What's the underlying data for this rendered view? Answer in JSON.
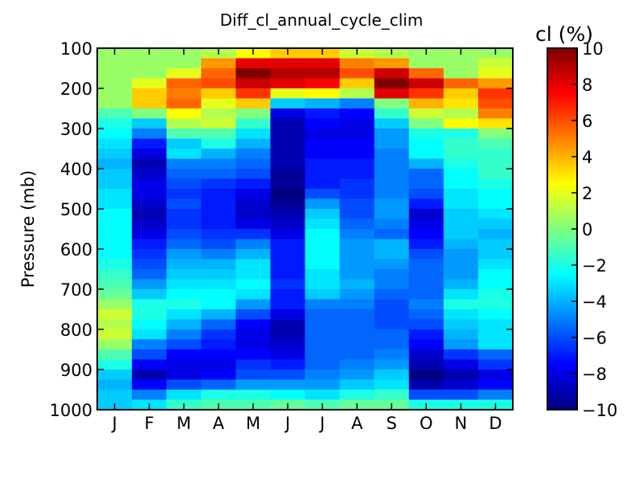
{
  "chart_data": {
    "type": "heatmap",
    "title": "Diff_cl_annual_cycle_clim",
    "xlabel": "",
    "ylabel": "Pressure (mb)",
    "colorbar_label": "cl (%)",
    "colormap": "jet",
    "clim": [
      -10,
      10
    ],
    "colorbar_ticks": [
      "10",
      "8",
      "6",
      "4",
      "2",
      "0",
      "−2",
      "−4",
      "−6",
      "−8",
      "−10"
    ],
    "colorbar_tick_values": [
      10,
      8,
      6,
      4,
      2,
      0,
      -2,
      -4,
      -6,
      -8,
      -10
    ],
    "months": [
      "J",
      "F",
      "M",
      "A",
      "M",
      "J",
      "J",
      "A",
      "S",
      "O",
      "N",
      "D"
    ],
    "y_ticks": [
      "100",
      "200",
      "300",
      "400",
      "500",
      "600",
      "700",
      "800",
      "900",
      "1000"
    ],
    "y_tick_values": [
      100,
      200,
      300,
      400,
      500,
      600,
      700,
      800,
      900,
      1000
    ],
    "ylim": [
      1000,
      100
    ],
    "pressure_bins": [
      100,
      125,
      150,
      175,
      200,
      225,
      250,
      275,
      300,
      325,
      350,
      375,
      400,
      425,
      450,
      475,
      500,
      525,
      550,
      575,
      600,
      625,
      650,
      675,
      700,
      725,
      750,
      775,
      800,
      825,
      850,
      875,
      900,
      925,
      950,
      975,
      1000
    ],
    "values": [
      [
        0.5,
        0.5,
        0.5,
        1.0,
        2.5,
        3.5,
        3.5,
        1.5,
        1.0,
        0.5,
        0.5,
        0.5
      ],
      [
        0.5,
        0.5,
        0.5,
        4.5,
        8.0,
        8.0,
        8.0,
        5.0,
        4.5,
        0.5,
        0.5,
        1.5
      ],
      [
        0.5,
        0.5,
        2.0,
        5.5,
        10.0,
        9.0,
        9.0,
        6.0,
        8.5,
        5.5,
        0.5,
        2.0
      ],
      [
        0.5,
        2.0,
        5.5,
        6.0,
        8.5,
        8.0,
        7.5,
        3.5,
        10.0,
        8.5,
        5.5,
        4.5
      ],
      [
        0.5,
        3.5,
        5.0,
        3.5,
        6.5,
        2.0,
        2.5,
        1.0,
        8.0,
        6.5,
        3.5,
        6.5
      ],
      [
        0.5,
        3.5,
        5.5,
        2.0,
        3.5,
        -3.5,
        -4.0,
        -5.0,
        0.0,
        4.0,
        3.0,
        6.0
      ],
      [
        -1.0,
        0.0,
        2.5,
        1.0,
        0.0,
        -8.0,
        -7.0,
        -7.5,
        -1.5,
        1.5,
        1.0,
        5.0
      ],
      [
        -2.0,
        -3.5,
        1.0,
        1.5,
        -1.5,
        -9.0,
        -7.5,
        -8.0,
        -3.5,
        0.0,
        2.5,
        3.0
      ],
      [
        -2.5,
        -5.0,
        -1.0,
        -1.0,
        -3.0,
        -9.0,
        -8.0,
        -8.0,
        -4.5,
        -2.0,
        -2.0,
        0.0
      ],
      [
        -3.0,
        -7.0,
        -3.5,
        -2.0,
        -4.0,
        -9.0,
        -7.5,
        -7.5,
        -4.5,
        -2.5,
        -1.5,
        -1.0
      ],
      [
        -3.5,
        -8.0,
        -3.0,
        -4.0,
        -5.0,
        -9.0,
        -7.5,
        -7.5,
        -5.0,
        -2.5,
        -1.5,
        -1.5
      ],
      [
        -4.0,
        -9.0,
        -5.0,
        -5.0,
        -5.5,
        -9.0,
        -7.0,
        -7.0,
        -5.0,
        -4.0,
        -2.0,
        -1.5
      ],
      [
        -3.5,
        -8.5,
        -5.5,
        -5.5,
        -6.0,
        -9.5,
        -7.0,
        -7.0,
        -5.0,
        -5.5,
        -2.5,
        -1.5
      ],
      [
        -3.5,
        -8.0,
        -6.0,
        -6.5,
        -7.0,
        -9.5,
        -7.0,
        -6.5,
        -5.0,
        -5.5,
        -2.5,
        -2.0
      ],
      [
        -3.0,
        -8.0,
        -6.5,
        -7.0,
        -8.0,
        -10.0,
        -6.0,
        -6.5,
        -5.0,
        -6.0,
        -3.0,
        -2.5
      ],
      [
        -3.0,
        -8.5,
        -6.0,
        -7.0,
        -8.5,
        -9.5,
        -4.5,
        -6.0,
        -4.5,
        -7.0,
        -3.0,
        -2.5
      ],
      [
        -2.5,
        -9.0,
        -6.5,
        -7.0,
        -8.5,
        -9.0,
        -3.5,
        -6.0,
        -4.5,
        -8.5,
        -3.5,
        -3.0
      ],
      [
        -2.5,
        -8.5,
        -6.5,
        -7.0,
        -8.0,
        -8.5,
        -3.0,
        -5.5,
        -5.0,
        -8.0,
        -3.5,
        -3.5
      ],
      [
        -2.5,
        -8.0,
        -6.0,
        -6.5,
        -6.5,
        -8.0,
        -2.5,
        -5.0,
        -5.5,
        -7.5,
        -3.5,
        -4.0
      ],
      [
        -2.5,
        -7.0,
        -5.5,
        -6.0,
        -5.0,
        -7.0,
        -2.5,
        -4.5,
        -4.0,
        -7.0,
        -4.0,
        -3.5
      ],
      [
        -2.5,
        -6.5,
        -4.5,
        -5.0,
        -4.0,
        -7.0,
        -2.5,
        -4.5,
        -4.0,
        -6.0,
        -4.5,
        -3.5
      ],
      [
        -2.0,
        -6.0,
        -4.0,
        -4.0,
        -3.0,
        -7.0,
        -2.5,
        -4.5,
        -4.5,
        -5.5,
        -4.5,
        -3.0
      ],
      [
        -1.5,
        -5.5,
        -3.5,
        -3.5,
        -3.0,
        -7.0,
        -3.0,
        -4.5,
        -5.0,
        -5.5,
        -4.5,
        -2.5
      ],
      [
        -1.0,
        -4.5,
        -3.0,
        -3.0,
        -2.5,
        -6.5,
        -3.0,
        -4.0,
        -5.0,
        -5.5,
        -4.0,
        -2.5
      ],
      [
        -0.5,
        -3.5,
        -2.5,
        -2.5,
        -3.0,
        -7.0,
        -3.5,
        -4.5,
        -5.5,
        -5.5,
        -3.0,
        -2.0
      ],
      [
        0.5,
        -2.0,
        -2.0,
        -2.5,
        -4.5,
        -7.0,
        -5.0,
        -5.0,
        -6.0,
        -5.0,
        -2.0,
        -2.0
      ],
      [
        1.5,
        -2.0,
        -3.0,
        -4.0,
        -6.0,
        -8.0,
        -5.5,
        -5.5,
        -6.0,
        -5.5,
        -3.0,
        -2.5
      ],
      [
        1.0,
        -2.5,
        -4.0,
        -5.5,
        -7.5,
        -9.0,
        -5.5,
        -5.5,
        -6.0,
        -6.0,
        -3.5,
        -3.0
      ],
      [
        1.5,
        -3.0,
        -5.0,
        -6.5,
        -8.0,
        -9.0,
        -5.5,
        -5.5,
        -5.5,
        -7.0,
        -4.0,
        -3.0
      ],
      [
        0.5,
        -5.0,
        -6.0,
        -7.0,
        -8.0,
        -8.5,
        -5.5,
        -5.5,
        -5.5,
        -7.5,
        -4.5,
        -3.0
      ],
      [
        -1.0,
        -6.0,
        -7.5,
        -7.5,
        -7.5,
        -8.0,
        -5.5,
        -5.5,
        -5.0,
        -8.5,
        -6.5,
        -5.5
      ],
      [
        -2.0,
        -7.5,
        -8.0,
        -8.0,
        -6.5,
        -7.0,
        -5.5,
        -5.0,
        -4.5,
        -9.0,
        -8.0,
        -6.5
      ],
      [
        -3.5,
        -9.0,
        -8.0,
        -7.5,
        -6.0,
        -6.0,
        -5.0,
        -4.5,
        -3.5,
        -10.0,
        -9.0,
        -8.0
      ],
      [
        -4.0,
        -7.5,
        -6.0,
        -5.5,
        -4.5,
        -4.5,
        -4.5,
        -3.5,
        -3.0,
        -9.0,
        -8.5,
        -7.5
      ],
      [
        -3.5,
        -5.0,
        -3.0,
        -2.0,
        -2.0,
        -2.5,
        -3.0,
        -2.0,
        -1.5,
        -6.0,
        -6.0,
        -5.0
      ],
      [
        -3.5,
        -3.0,
        -1.5,
        -1.0,
        -1.0,
        -0.5,
        -1.0,
        -0.5,
        -0.5,
        -2.0,
        -2.0,
        -2.0
      ]
    ]
  }
}
